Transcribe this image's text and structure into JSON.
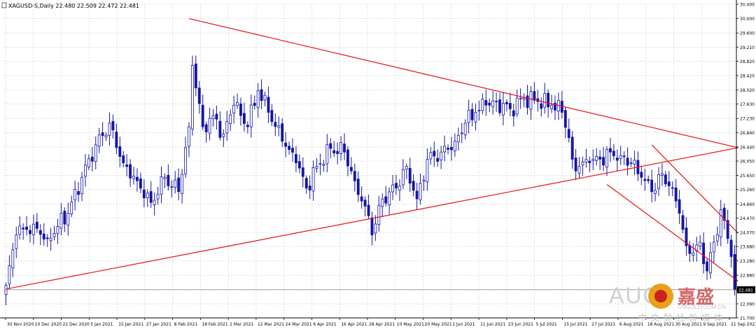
{
  "chart_data": {
    "type": "candlestick",
    "title": "XAGUSD-S,Daily  22.480 22.509 22.472 22.481",
    "symbol": "XAGUSD-S",
    "timeframe": "Daily",
    "ohlc_header": "22.480 22.509 22.472 22.481",
    "price_tag": "22.481",
    "y_ticks": [
      "30.400",
      "30.000",
      "29.600",
      "29.210",
      "28.820",
      "28.420",
      "28.020",
      "27.630",
      "27.230",
      "26.840",
      "26.440",
      "26.050",
      "25.650",
      "25.260",
      "24.860",
      "24.470",
      "24.070",
      "23.680",
      "23.280",
      "22.880",
      "22.480",
      "22.090",
      "21.700"
    ],
    "ylim": [
      21.7,
      30.4
    ],
    "x_ticks": [
      "30 Nov 2020",
      "10 Dec 2020",
      "22 Dec 2020",
      "5 Jan 2021",
      "15 Jan 2021",
      "27 Jan 2021",
      "8 Feb 2021",
      "18 Feb 2021",
      "2 Mar 2021",
      "12 Mar 2021",
      "24 Mar 2021",
      "6 Apr 2021",
      "16 Apr 2021",
      "28 Apr 2021",
      "10 May 2021",
      "20 May 2021",
      "1 Jun 2021",
      "11 Jun 2021",
      "23 Jun 2021",
      "5 Jul 2021",
      "15 Jul 2021",
      "27 Jul 2021",
      "6 Aug 2021",
      "18 Aug 2021",
      "30 Aug 2021",
      "9 Sep 2021",
      "21 Sep 2021"
    ],
    "bar_count": 212,
    "anchors": [
      {
        "i": 0,
        "c": 22.6
      },
      {
        "i": 3,
        "c": 24.0
      },
      {
        "i": 8,
        "c": 24.3
      },
      {
        "i": 12,
        "c": 23.9
      },
      {
        "i": 18,
        "c": 24.6
      },
      {
        "i": 22,
        "c": 25.6
      },
      {
        "i": 26,
        "c": 26.5
      },
      {
        "i": 30,
        "c": 27.1
      },
      {
        "i": 34,
        "c": 26.0
      },
      {
        "i": 38,
        "c": 25.5
      },
      {
        "i": 42,
        "c": 24.9
      },
      {
        "i": 46,
        "c": 25.6
      },
      {
        "i": 50,
        "c": 25.2
      },
      {
        "i": 53,
        "c": 27.0
      },
      {
        "i": 54,
        "c": 28.7
      },
      {
        "i": 57,
        "c": 27.0
      },
      {
        "i": 60,
        "c": 27.3
      },
      {
        "i": 63,
        "c": 26.8
      },
      {
        "i": 66,
        "c": 27.6
      },
      {
        "i": 70,
        "c": 27.0
      },
      {
        "i": 73,
        "c": 28.0
      },
      {
        "i": 76,
        "c": 27.4
      },
      {
        "i": 80,
        "c": 26.6
      },
      {
        "i": 84,
        "c": 26.0
      },
      {
        "i": 87,
        "c": 25.3
      },
      {
        "i": 90,
        "c": 25.9
      },
      {
        "i": 94,
        "c": 26.4
      },
      {
        "i": 98,
        "c": 26.3
      },
      {
        "i": 101,
        "c": 25.5
      },
      {
        "i": 104,
        "c": 24.8
      },
      {
        "i": 106,
        "c": 24.0
      },
      {
        "i": 109,
        "c": 25.0
      },
      {
        "i": 113,
        "c": 25.3
      },
      {
        "i": 116,
        "c": 25.9
      },
      {
        "i": 119,
        "c": 25.0
      },
      {
        "i": 122,
        "c": 26.1
      },
      {
        "i": 126,
        "c": 26.3
      },
      {
        "i": 130,
        "c": 26.6
      },
      {
        "i": 133,
        "c": 27.1
      },
      {
        "i": 136,
        "c": 27.4
      },
      {
        "i": 139,
        "c": 27.6
      },
      {
        "i": 142,
        "c": 27.7
      },
      {
        "i": 146,
        "c": 27.5
      },
      {
        "i": 150,
        "c": 27.8
      },
      {
        "i": 154,
        "c": 27.7
      },
      {
        "i": 158,
        "c": 27.6
      },
      {
        "i": 161,
        "c": 27.4
      },
      {
        "i": 163,
        "c": 26.7
      },
      {
        "i": 164,
        "c": 26.1
      },
      {
        "i": 166,
        "c": 25.9
      },
      {
        "i": 169,
        "c": 26.0
      },
      {
        "i": 172,
        "c": 26.1
      },
      {
        "i": 175,
        "c": 26.3
      },
      {
        "i": 178,
        "c": 26.2
      },
      {
        "i": 181,
        "c": 26.0
      },
      {
        "i": 184,
        "c": 25.6
      },
      {
        "i": 187,
        "c": 25.2
      },
      {
        "i": 190,
        "c": 25.7
      },
      {
        "i": 193,
        "c": 25.3
      },
      {
        "i": 195,
        "c": 24.6
      },
      {
        "i": 197,
        "c": 23.7
      },
      {
        "i": 199,
        "c": 23.5
      },
      {
        "i": 201,
        "c": 23.8
      },
      {
        "i": 203,
        "c": 23.0
      },
      {
        "i": 205,
        "c": 23.8
      },
      {
        "i": 207,
        "c": 24.7
      },
      {
        "i": 209,
        "c": 23.9
      },
      {
        "i": 210,
        "c": 23.4
      },
      {
        "i": 211,
        "c": 22.48
      }
    ],
    "trendlines": [
      {
        "from": {
          "i": 53,
          "c": 30.0
        },
        "to": {
          "i": 212,
          "c": 26.42
        }
      },
      {
        "from": {
          "i": 0,
          "c": 22.5
        },
        "to": {
          "i": 212,
          "c": 26.42
        }
      },
      {
        "from": {
          "i": 187,
          "c": 26.5
        },
        "to": {
          "i": 212,
          "c": 24.05
        }
      },
      {
        "from": {
          "i": 174,
          "c": 25.4
        },
        "to": {
          "i": 212,
          "c": 22.72
        }
      }
    ],
    "grid": true,
    "colors": {
      "bull": "#ffffff",
      "bear": "#1515a8",
      "wick": "#1515a8",
      "trendline": "#e81010",
      "grid": "#c8c8c8",
      "text": "#000000"
    }
  },
  "watermarks": {
    "brand_left": "AUG",
    "brand_right": "嘉盛",
    "cn_site": "中文财经新媒体",
    "url": "CNGOLD.COM.CN"
  }
}
